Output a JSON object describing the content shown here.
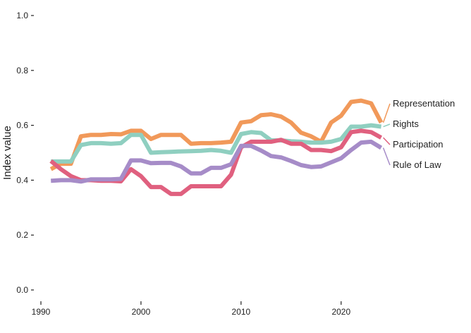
{
  "chart_data": {
    "type": "line",
    "title": "",
    "xlabel": "",
    "ylabel": "Index value",
    "xlim": [
      1990,
      2024
    ],
    "ylim": [
      0,
      1
    ],
    "x_ticks": [
      1990,
      2000,
      2010,
      2020
    ],
    "y_ticks": [
      0.0,
      0.2,
      0.4,
      0.6,
      0.8,
      1.0
    ],
    "y_tick_labels": [
      "0.0",
      "0.2",
      "0.4",
      "0.6",
      "0.8",
      "1.0"
    ],
    "grid": false,
    "legend": "direct labels at right end of lines",
    "x": [
      1991,
      1992,
      1993,
      1994,
      1995,
      1996,
      1997,
      1998,
      1999,
      2000,
      2001,
      2002,
      2003,
      2004,
      2005,
      2006,
      2007,
      2008,
      2009,
      2010,
      2011,
      2012,
      2013,
      2014,
      2015,
      2016,
      2017,
      2018,
      2019,
      2020,
      2021,
      2022,
      2023,
      2024
    ],
    "series": [
      {
        "name": "Representation",
        "color": "#f1995a",
        "values": [
          0.44,
          0.46,
          0.46,
          0.56,
          0.565,
          0.565,
          0.568,
          0.567,
          0.58,
          0.58,
          0.55,
          0.565,
          0.565,
          0.565,
          0.533,
          0.535,
          0.535,
          0.537,
          0.54,
          0.61,
          0.615,
          0.637,
          0.64,
          0.632,
          0.61,
          0.573,
          0.56,
          0.54,
          0.61,
          0.635,
          0.685,
          0.69,
          0.68,
          0.61
        ]
      },
      {
        "name": "Rights",
        "color": "#8fcfc0",
        "values": [
          0.468,
          0.468,
          0.468,
          0.528,
          0.535,
          0.535,
          0.533,
          0.535,
          0.565,
          0.565,
          0.5,
          0.502,
          0.503,
          0.505,
          0.506,
          0.507,
          0.51,
          0.507,
          0.5,
          0.568,
          0.575,
          0.572,
          0.545,
          0.545,
          0.542,
          0.54,
          0.537,
          0.537,
          0.54,
          0.55,
          0.595,
          0.595,
          0.6,
          0.595
        ]
      },
      {
        "name": "Participation",
        "color": "#e0607f",
        "values": [
          0.47,
          0.44,
          0.415,
          0.4,
          0.4,
          0.398,
          0.398,
          0.396,
          0.44,
          0.415,
          0.375,
          0.375,
          0.35,
          0.35,
          0.378,
          0.378,
          0.378,
          0.378,
          0.42,
          0.52,
          0.54,
          0.54,
          0.54,
          0.547,
          0.533,
          0.533,
          0.51,
          0.51,
          0.506,
          0.52,
          0.575,
          0.58,
          0.575,
          0.555
        ]
      },
      {
        "name": "Rule of Law",
        "color": "#a68cc8",
        "values": [
          0.398,
          0.4,
          0.4,
          0.395,
          0.403,
          0.403,
          0.403,
          0.405,
          0.472,
          0.472,
          0.462,
          0.463,
          0.463,
          0.45,
          0.425,
          0.425,
          0.445,
          0.445,
          0.458,
          0.525,
          0.525,
          0.508,
          0.488,
          0.483,
          0.47,
          0.455,
          0.448,
          0.45,
          0.465,
          0.48,
          0.51,
          0.537,
          0.54,
          0.518
        ]
      }
    ]
  }
}
